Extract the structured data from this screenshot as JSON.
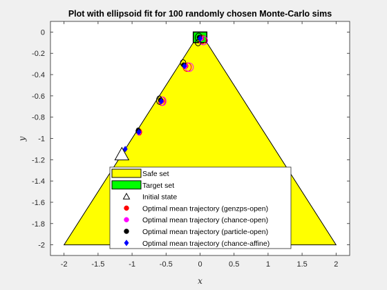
{
  "chart_data": {
    "type": "scatter",
    "title": "Plot with ellipsoid fit for 100 randomly chosen Monte-Carlo sims",
    "xlabel": "x",
    "ylabel": "y",
    "xlim": [
      -2.2,
      2.2
    ],
    "ylim": [
      -2.1,
      0.1
    ],
    "xticks": [
      -2,
      -1.5,
      -1,
      -0.5,
      0,
      0.5,
      1,
      1.5,
      2
    ],
    "xtick_labels": [
      "-2",
      "-1.5",
      "-1",
      "-0.5",
      "0",
      "0.5",
      "1",
      "1.5",
      "2"
    ],
    "yticks": [
      0,
      -0.2,
      -0.4,
      -0.6,
      -0.8,
      -1,
      -1.2,
      -1.4,
      -1.6,
      -1.8,
      -2
    ],
    "ytick_labels": [
      "0",
      "-0.2",
      "-0.4",
      "-0.6",
      "-0.8",
      "-1",
      "-1.2",
      "-1.4",
      "-1.6",
      "-1.8",
      "-2"
    ],
    "grid": false,
    "legend_position": "bottom-center",
    "safe_set": {
      "name": "Safe set",
      "color": "#ffff00",
      "vertices": [
        [
          -2,
          -2
        ],
        [
          2,
          -2
        ],
        [
          0,
          0
        ]
      ]
    },
    "target_set": {
      "name": "Target set",
      "color": "#00ff00",
      "vertices": [
        [
          -0.1,
          -0.1
        ],
        [
          0.1,
          -0.1
        ],
        [
          0.1,
          0.0
        ],
        [
          -0.1,
          0.0
        ]
      ]
    },
    "initial_state": {
      "name": "Initial state",
      "x": -1.15,
      "y": -1.15
    },
    "series": [
      {
        "name": "Optimal mean trajectory (genzps-open)",
        "color": "#ff0000",
        "marker": "circle",
        "x": [
          -0.89,
          -0.56,
          -0.21,
          0.02
        ],
        "y": [
          -0.94,
          -0.65,
          -0.32,
          -0.06
        ]
      },
      {
        "name": "Optimal mean trajectory (chance-open)",
        "color": "#ff00ff",
        "marker": "circle",
        "x": [
          -0.9,
          -0.57,
          -0.22,
          0.01
        ],
        "y": [
          -0.94,
          -0.65,
          -0.32,
          -0.06
        ]
      },
      {
        "name": "Optimal mean trajectory (particle-open)",
        "color": "#000000",
        "marker": "circle",
        "x": [
          -0.91,
          -0.58,
          -0.24,
          -0.01
        ],
        "y": [
          -0.93,
          -0.64,
          -0.31,
          -0.05
        ]
      },
      {
        "name": "Optimal mean trajectory (chance-affine)",
        "color": "#0000ff",
        "marker": "diamond",
        "x": [
          -1.1,
          -0.9,
          -0.57,
          -0.23,
          0.0
        ],
        "y": [
          -1.1,
          -0.94,
          -0.65,
          -0.32,
          -0.06
        ]
      }
    ],
    "ellipses": [
      {
        "series": "genzps-open",
        "cx": -0.89,
        "cy": -0.94,
        "rx": 0.03,
        "ry": 0.03
      },
      {
        "series": "genzps-open",
        "cx": -0.56,
        "cy": -0.65,
        "rx": 0.05,
        "ry": 0.04
      },
      {
        "series": "genzps-open",
        "cx": -0.19,
        "cy": -0.33,
        "rx": 0.06,
        "ry": 0.04
      },
      {
        "series": "genzps-open",
        "cx": 0.03,
        "cy": -0.07,
        "rx": 0.06,
        "ry": 0.04
      },
      {
        "series": "chance-open",
        "cx": -0.9,
        "cy": -0.94,
        "rx": 0.03,
        "ry": 0.03
      },
      {
        "series": "chance-open",
        "cx": -0.55,
        "cy": -0.65,
        "rx": 0.05,
        "ry": 0.04
      },
      {
        "series": "chance-open",
        "cx": -0.16,
        "cy": -0.33,
        "rx": 0.06,
        "ry": 0.04
      },
      {
        "series": "chance-open",
        "cx": 0.05,
        "cy": -0.08,
        "rx": 0.06,
        "ry": 0.04
      },
      {
        "series": "particle-open",
        "cx": -0.91,
        "cy": -0.93,
        "rx": 0.03,
        "ry": 0.03
      },
      {
        "series": "particle-open",
        "cx": -0.6,
        "cy": -0.64,
        "rx": 0.04,
        "ry": 0.04
      },
      {
        "series": "particle-open",
        "cx": -0.25,
        "cy": -0.29,
        "rx": 0.04,
        "ry": 0.03
      },
      {
        "series": "particle-open",
        "cx": -0.02,
        "cy": -0.05,
        "rx": 0.05,
        "ry": 0.04
      },
      {
        "series": "particle-open",
        "cx": -0.03,
        "cy": -0.1,
        "rx": 0.04,
        "ry": 0.03
      }
    ]
  }
}
